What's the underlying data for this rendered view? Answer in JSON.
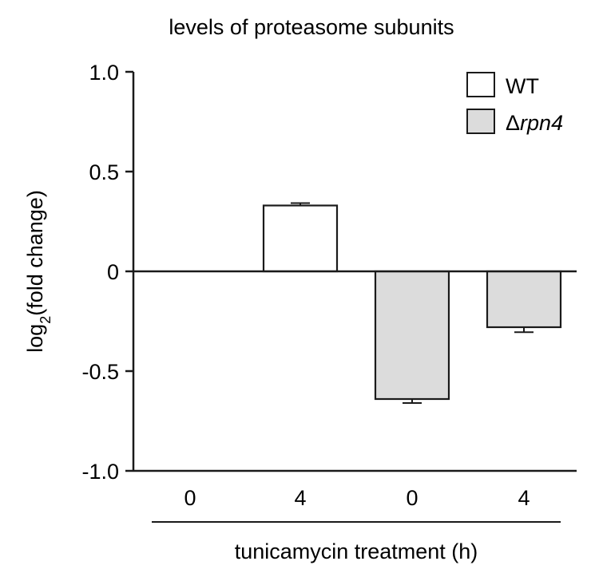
{
  "chart_data": {
    "type": "bar",
    "title": "levels of proteasome subunits",
    "ylabel": {
      "prefix": "log",
      "subscript": "2",
      "suffix": "(fold change)"
    },
    "xlabel": "tunicamycin treatment (h)",
    "ylim": [
      -1.0,
      1.0
    ],
    "yticks": [
      {
        "value": 1.0,
        "label": "1.0"
      },
      {
        "value": 0.5,
        "label": "0.5"
      },
      {
        "value": 0.0,
        "label": "0"
      },
      {
        "value": -0.5,
        "label": "-0.5"
      },
      {
        "value": -1.0,
        "label": "-1.0"
      }
    ],
    "categories": [
      "0",
      "4",
      "0",
      "4"
    ],
    "bars": [
      {
        "category_index": 0,
        "series": "WT",
        "value": 0.0,
        "error": 0.0
      },
      {
        "category_index": 1,
        "series": "WT",
        "value": 0.33,
        "error": 0.012
      },
      {
        "category_index": 2,
        "series": "rpn4",
        "value": -0.64,
        "error": 0.02
      },
      {
        "category_index": 3,
        "series": "rpn4",
        "value": -0.28,
        "error": 0.025
      }
    ],
    "series": [
      {
        "key": "WT",
        "prefix": "",
        "name": "WT",
        "color": "#ffffff"
      },
      {
        "key": "rpn4",
        "prefix": "Δ",
        "name": "rpn4",
        "color": "#dcdcdc",
        "italic": true
      }
    ],
    "legend_position": "top-right",
    "grid": false
  }
}
